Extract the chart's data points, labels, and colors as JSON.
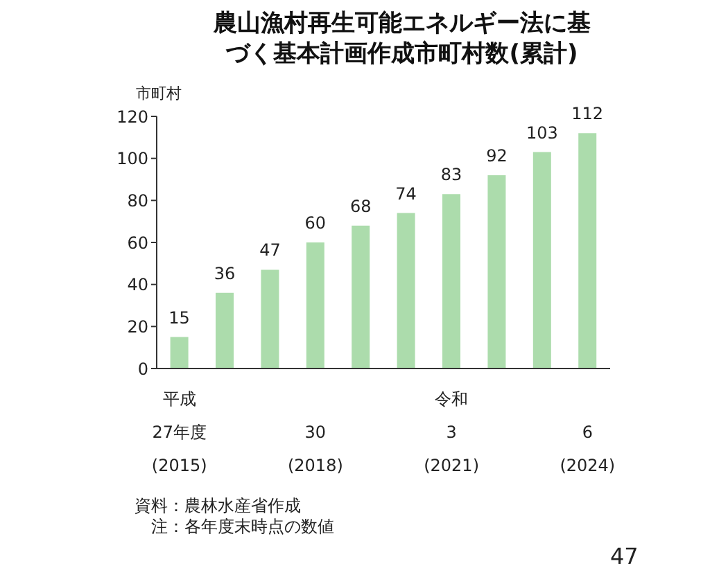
{
  "chart_data": {
    "type": "bar",
    "title": "農山漁村再生可能エネルギー法に基づく基本計画作成市町村数(累計)",
    "ylabel": "市町村",
    "categories": [
      "平成\n27年度\n(2015)",
      null,
      null,
      "30\n(2018)",
      null,
      null,
      "令和\n3\n(2021)",
      null,
      null,
      "6\n(2024)"
    ],
    "values": [
      15,
      36,
      47,
      60,
      68,
      74,
      83,
      92,
      103,
      112
    ],
    "color": "#acdcac",
    "ylim": [
      0,
      120
    ],
    "yticks": [
      0,
      20,
      40,
      60,
      80,
      100,
      120
    ],
    "grid": false,
    "data_labels": true,
    "annotations": [
      "資料：農林水産省作成",
      "　注：各年度末時点の数値",
      "47"
    ]
  }
}
